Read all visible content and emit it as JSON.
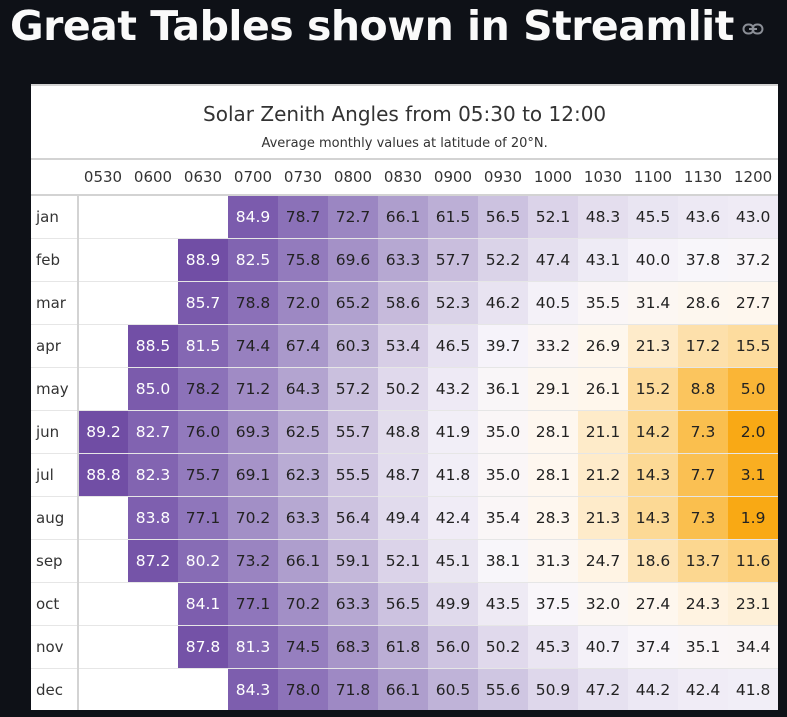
{
  "page": {
    "title": "Great Tables shown in Streamlit"
  },
  "table": {
    "title": "Solar Zenith Angles from 05:30 to 12:00",
    "subtitle": "Average monthly values at latitude of 20°N.",
    "columns": [
      "0530",
      "0600",
      "0630",
      "0700",
      "0730",
      "0800",
      "0830",
      "0900",
      "0930",
      "1000",
      "1030",
      "1100",
      "1130",
      "1200"
    ],
    "rows": [
      {
        "month": "jan",
        "values": [
          null,
          null,
          null,
          84.9,
          78.7,
          72.7,
          66.1,
          61.5,
          56.5,
          52.1,
          48.3,
          45.5,
          43.6,
          43.0
        ]
      },
      {
        "month": "feb",
        "values": [
          null,
          null,
          88.9,
          82.5,
          75.8,
          69.6,
          63.3,
          57.7,
          52.2,
          47.4,
          43.1,
          40.0,
          37.8,
          37.2
        ]
      },
      {
        "month": "mar",
        "values": [
          null,
          null,
          85.7,
          78.8,
          72.0,
          65.2,
          58.6,
          52.3,
          46.2,
          40.5,
          35.5,
          31.4,
          28.6,
          27.7
        ]
      },
      {
        "month": "apr",
        "values": [
          null,
          88.5,
          81.5,
          74.4,
          67.4,
          60.3,
          53.4,
          46.5,
          39.7,
          33.2,
          26.9,
          21.3,
          17.2,
          15.5
        ]
      },
      {
        "month": "may",
        "values": [
          null,
          85.0,
          78.2,
          71.2,
          64.3,
          57.2,
          50.2,
          43.2,
          36.1,
          29.1,
          26.1,
          15.2,
          8.8,
          5.0
        ]
      },
      {
        "month": "jun",
        "values": [
          89.2,
          82.7,
          76.0,
          69.3,
          62.5,
          55.7,
          48.8,
          41.9,
          35.0,
          28.1,
          21.1,
          14.2,
          7.3,
          2.0
        ]
      },
      {
        "month": "jul",
        "values": [
          88.8,
          82.3,
          75.7,
          69.1,
          62.3,
          55.5,
          48.7,
          41.8,
          35.0,
          28.1,
          21.2,
          14.3,
          7.7,
          3.1
        ]
      },
      {
        "month": "aug",
        "values": [
          null,
          83.8,
          77.1,
          70.2,
          63.3,
          56.4,
          49.4,
          42.4,
          35.4,
          28.3,
          21.3,
          14.3,
          7.3,
          1.9
        ]
      },
      {
        "month": "sep",
        "values": [
          null,
          87.2,
          80.2,
          73.2,
          66.1,
          59.1,
          52.1,
          45.1,
          38.1,
          31.3,
          24.7,
          18.6,
          13.7,
          11.6
        ]
      },
      {
        "month": "oct",
        "values": [
          null,
          null,
          84.1,
          77.1,
          70.2,
          63.3,
          56.5,
          49.9,
          43.5,
          37.5,
          32.0,
          27.4,
          24.3,
          23.1
        ]
      },
      {
        "month": "nov",
        "values": [
          null,
          null,
          87.8,
          81.3,
          74.5,
          68.3,
          61.8,
          56.0,
          50.2,
          45.3,
          40.7,
          37.4,
          35.1,
          34.4
        ]
      },
      {
        "month": "dec",
        "values": [
          null,
          null,
          null,
          84.3,
          78.0,
          71.8,
          66.1,
          60.5,
          55.6,
          50.9,
          47.2,
          44.2,
          42.4,
          41.8
        ]
      }
    ],
    "color_scale": {
      "domain": [
        0,
        90
      ],
      "stops": [
        "#f8a100",
        "#fcd58a",
        "#fff7ec",
        "#f8f6fb",
        "#ddd6ea",
        "#b3a4d0",
        "#8f76bb",
        "#6e4aa3"
      ]
    }
  }
}
